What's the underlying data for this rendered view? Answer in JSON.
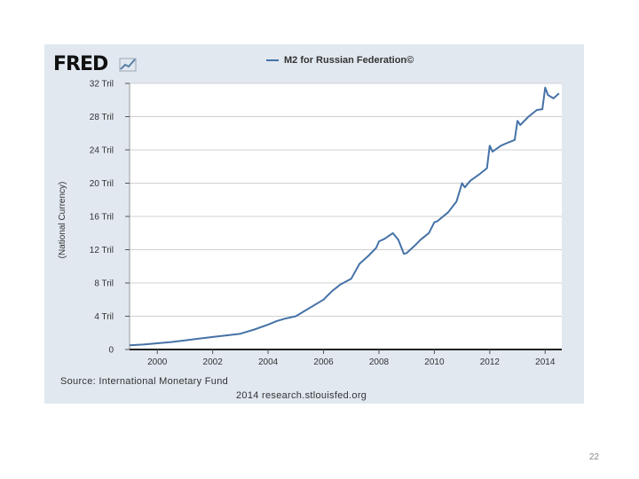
{
  "chart_data": {
    "type": "line",
    "title": "M2 for Russian Federation©",
    "logo_text": "FRED",
    "xlabel": "",
    "ylabel": "(National Currency)",
    "xlim": [
      1999.0,
      2014.6
    ],
    "ylim": [
      0,
      32
    ],
    "x_ticks": [
      2000,
      2002,
      2004,
      2006,
      2008,
      2010,
      2012,
      2014
    ],
    "x_tick_labels": [
      "2000",
      "2002",
      "2004",
      "2006",
      "2008",
      "2010",
      "2012",
      "2014"
    ],
    "y_ticks": [
      0,
      4,
      8,
      12,
      16,
      20,
      24,
      28,
      32
    ],
    "y_tick_labels": [
      "0",
      "4 Tril",
      "8 Tril",
      "12 Tril",
      "16 Tril",
      "20 Tril",
      "24 Tril",
      "28 Tril",
      "32 Tril"
    ],
    "grid": true,
    "series": [
      {
        "name": "M2 for Russian Federation©",
        "color": "#4572a7",
        "x": [
          1999.0,
          1999.5,
          2000.0,
          2000.5,
          2001.0,
          2001.5,
          2002.0,
          2002.5,
          2003.0,
          2003.5,
          2004.0,
          2004.3,
          2004.6,
          2005.0,
          2005.3,
          2005.6,
          2006.0,
          2006.3,
          2006.6,
          2007.0,
          2007.3,
          2007.6,
          2007.9,
          2008.0,
          2008.2,
          2008.5,
          2008.7,
          2008.9,
          2009.0,
          2009.3,
          2009.5,
          2009.8,
          2010.0,
          2010.1,
          2010.5,
          2010.8,
          2011.0,
          2011.1,
          2011.3,
          2011.6,
          2011.9,
          2012.0,
          2012.1,
          2012.4,
          2012.6,
          2012.9,
          2013.0,
          2013.1,
          2013.4,
          2013.7,
          2013.9,
          2014.0,
          2014.1,
          2014.3,
          2014.5
        ],
        "y": [
          0.5,
          0.6,
          0.75,
          0.9,
          1.1,
          1.3,
          1.5,
          1.7,
          1.9,
          2.4,
          3.0,
          3.4,
          3.7,
          4.0,
          4.6,
          5.2,
          6.0,
          7.0,
          7.8,
          8.5,
          10.3,
          11.2,
          12.2,
          13.0,
          13.3,
          14.0,
          13.2,
          11.5,
          11.6,
          12.5,
          13.2,
          14.0,
          15.3,
          15.4,
          16.5,
          17.8,
          20.0,
          19.5,
          20.3,
          21.0,
          21.8,
          24.5,
          23.8,
          24.5,
          24.8,
          25.2,
          27.5,
          27.0,
          28.0,
          28.8,
          28.9,
          31.5,
          30.6,
          30.2,
          30.8
        ]
      }
    ]
  },
  "source_note": "Source: International Monetary Fund",
  "credit": "2014 research.stlouisfed.org",
  "slide_number": "22"
}
